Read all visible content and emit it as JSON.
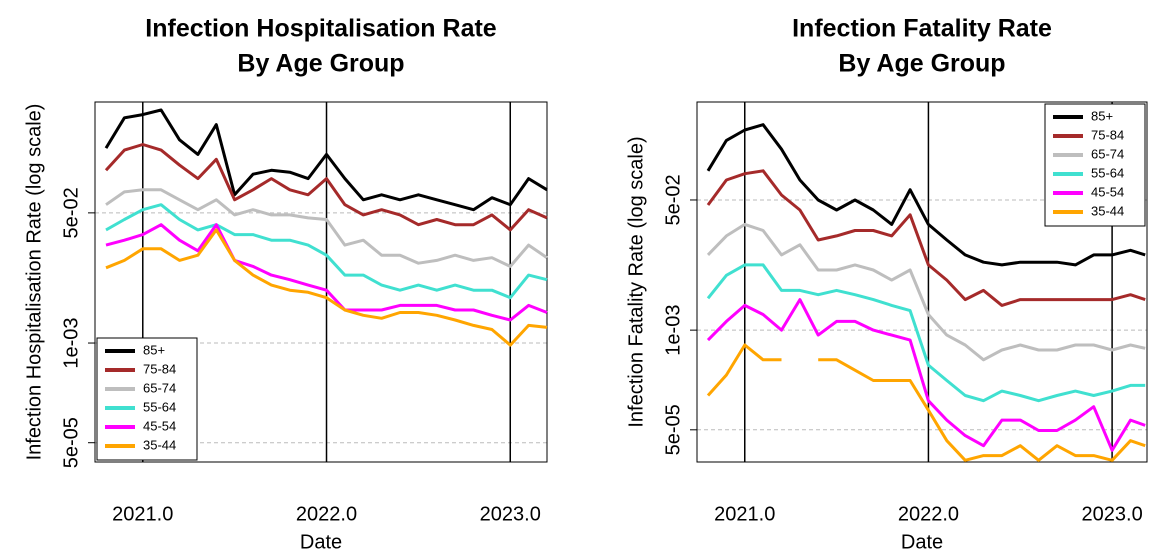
{
  "chart_data": [
    {
      "type": "line",
      "title": "Infection Hospitalisation Rate",
      "subtitle": "By Age Group",
      "x_label": "Date",
      "y_label": "Infection Hospitalisation Rate (log scale)",
      "log_y": true,
      "grid": true,
      "legend": "bottom-left",
      "xlim": [
        2020.74,
        2023.2
      ],
      "xticks": [
        {
          "value": 2021,
          "label": "2021.0"
        },
        {
          "value": 2022,
          "label": "2022.0"
        },
        {
          "value": 2023,
          "label": "2023.0"
        }
      ],
      "ylim": [
        2.8e-05,
        1.4
      ],
      "yticks": [
        {
          "value": 5e-05,
          "label": "5e-05"
        },
        {
          "value": 0.001,
          "label": "1e-03"
        },
        {
          "value": 0.05,
          "label": "5e-02"
        }
      ],
      "x": [
        2020.8,
        2020.9,
        2021.0,
        2021.1,
        2021.2,
        2021.3,
        2021.4,
        2021.5,
        2021.6,
        2021.7,
        2021.8,
        2021.9,
        2022.0,
        2022.1,
        2022.2,
        2022.3,
        2022.4,
        2022.5,
        2022.6,
        2022.7,
        2022.8,
        2022.9,
        2023.0,
        2023.1,
        2023.2
      ],
      "series": [
        {
          "name": "85+",
          "color": "#000000",
          "values": [
            0.35,
            0.87,
            0.96,
            1.1,
            0.45,
            0.29,
            0.71,
            0.086,
            0.16,
            0.18,
            0.17,
            0.14,
            0.29,
            0.14,
            0.074,
            0.086,
            0.074,
            0.086,
            0.074,
            0.064,
            0.055,
            0.079,
            0.064,
            0.14,
            0.1
          ]
        },
        {
          "name": "75-84",
          "color": "#a52a2a",
          "values": [
            0.18,
            0.33,
            0.39,
            0.33,
            0.21,
            0.14,
            0.25,
            0.074,
            0.1,
            0.14,
            0.1,
            0.086,
            0.14,
            0.064,
            0.047,
            0.055,
            0.047,
            0.035,
            0.041,
            0.035,
            0.035,
            0.047,
            0.03,
            0.055,
            0.043
          ]
        },
        {
          "name": "65-74",
          "color": "#bebebe",
          "values": [
            0.064,
            0.094,
            0.1,
            0.1,
            0.074,
            0.055,
            0.074,
            0.047,
            0.055,
            0.047,
            0.047,
            0.043,
            0.041,
            0.019,
            0.022,
            0.014,
            0.014,
            0.011,
            0.012,
            0.014,
            0.012,
            0.013,
            0.01,
            0.019,
            0.013
          ]
        },
        {
          "name": "55-64",
          "color": "#40e0d0",
          "values": [
            0.03,
            0.041,
            0.055,
            0.064,
            0.041,
            0.03,
            0.035,
            0.026,
            0.026,
            0.022,
            0.022,
            0.019,
            0.014,
            0.0077,
            0.0077,
            0.0057,
            0.0049,
            0.0057,
            0.0049,
            0.0057,
            0.0049,
            0.0049,
            0.0039,
            0.0077,
            0.0067
          ]
        },
        {
          "name": "45-54",
          "color": "#ff00ff",
          "values": [
            0.019,
            0.022,
            0.026,
            0.035,
            0.022,
            0.016,
            0.035,
            0.012,
            0.01,
            0.0077,
            0.0067,
            0.0057,
            0.0049,
            0.0027,
            0.0027,
            0.0027,
            0.0031,
            0.0031,
            0.0031,
            0.0027,
            0.0027,
            0.0023,
            0.002,
            0.0031,
            0.0025
          ]
        },
        {
          "name": "35-44",
          "color": "#ffa500",
          "values": [
            0.0096,
            0.012,
            0.017,
            0.017,
            0.012,
            0.014,
            0.03,
            0.012,
            0.0077,
            0.0057,
            0.0049,
            0.0046,
            0.0039,
            0.0027,
            0.0023,
            0.0021,
            0.0025,
            0.0025,
            0.0023,
            0.002,
            0.0017,
            0.0015,
            0.00094,
            0.0017,
            0.0016
          ]
        }
      ]
    },
    {
      "type": "line",
      "title": "Infection Fatality Rate",
      "subtitle": "By Age Group",
      "x_label": "Date",
      "y_label": "Infection Fatality Rate (log scale)",
      "log_y": true,
      "grid": true,
      "legend": "top-right",
      "xlim": [
        2020.74,
        2023.19
      ],
      "xticks": [
        {
          "value": 2021,
          "label": "2021.0"
        },
        {
          "value": 2022,
          "label": "2022.0"
        },
        {
          "value": 2023,
          "label": "2023.0"
        }
      ],
      "ylim": [
        1.9e-05,
        0.95
      ],
      "yticks": [
        {
          "value": 5e-05,
          "label": "5e-05"
        },
        {
          "value": 0.001,
          "label": "1e-03"
        },
        {
          "value": 0.05,
          "label": "5e-02"
        }
      ],
      "x": [
        2020.8,
        2020.9,
        2021.0,
        2021.1,
        2021.2,
        2021.3,
        2021.4,
        2021.5,
        2021.6,
        2021.7,
        2021.8,
        2021.9,
        2022.0,
        2022.1,
        2022.2,
        2022.3,
        2022.4,
        2022.5,
        2022.6,
        2022.7,
        2022.8,
        2022.9,
        2023.0,
        2023.1,
        2023.18
      ],
      "series": [
        {
          "name": "85+",
          "color": "#000000",
          "values": [
            0.12,
            0.3,
            0.41,
            0.48,
            0.23,
            0.091,
            0.05,
            0.037,
            0.05,
            0.037,
            0.024,
            0.068,
            0.024,
            0.015,
            0.0096,
            0.0077,
            0.0071,
            0.0077,
            0.0077,
            0.0077,
            0.0071,
            0.0096,
            0.0096,
            0.011,
            0.0096
          ]
        },
        {
          "name": "75-84",
          "color": "#a52a2a",
          "values": [
            0.043,
            0.091,
            0.11,
            0.12,
            0.058,
            0.037,
            0.015,
            0.017,
            0.02,
            0.02,
            0.017,
            0.032,
            0.0071,
            0.0045,
            0.0025,
            0.0033,
            0.0021,
            0.0025,
            0.0025,
            0.0025,
            0.0025,
            0.0025,
            0.0025,
            0.0029,
            0.0025
          ]
        },
        {
          "name": "65-74",
          "color": "#bebebe",
          "values": [
            0.0096,
            0.017,
            0.024,
            0.02,
            0.0096,
            0.013,
            0.0061,
            0.0061,
            0.0071,
            0.0061,
            0.0045,
            0.0061,
            0.0016,
            0.00086,
            0.00064,
            0.00041,
            0.00055,
            0.00064,
            0.00055,
            0.00055,
            0.00064,
            0.00064,
            0.00055,
            0.00064,
            0.00058
          ]
        },
        {
          "name": "55-64",
          "color": "#40e0d0",
          "values": [
            0.0026,
            0.0052,
            0.0071,
            0.0071,
            0.0033,
            0.0033,
            0.0029,
            0.0033,
            0.0029,
            0.0025,
            0.0021,
            0.0018,
            0.00035,
            0.00022,
            0.00014,
            0.00012,
            0.00016,
            0.00014,
            0.00012,
            0.00014,
            0.00016,
            0.00014,
            0.00016,
            0.00019,
            0.00019
          ]
        },
        {
          "name": "45-54",
          "color": "#ff00ff",
          "values": [
            0.00074,
            0.0013,
            0.0021,
            0.0016,
            0.001,
            0.0025,
            0.00086,
            0.0013,
            0.0013,
            0.001,
            0.00086,
            0.00074,
            0.00012,
            6.7e-05,
            4.2e-05,
            3.1e-05,
            6.7e-05,
            6.7e-05,
            4.9e-05,
            4.9e-05,
            6.7e-05,
            0.0001,
            2.7e-05,
            6.7e-05,
            5.7e-05
          ]
        },
        {
          "name": "35-44",
          "color": "#ffa500",
          "values": [
            0.00014,
            0.00026,
            0.00064,
            0.00041,
            0.00041,
            null,
            0.00041,
            0.00041,
            0.0003,
            0.00022,
            0.00022,
            0.00022,
            9e-05,
            3.6e-05,
            2e-05,
            2.3e-05,
            2.3e-05,
            3.1e-05,
            2e-05,
            3.1e-05,
            2.3e-05,
            2.3e-05,
            2e-05,
            3.6e-05,
            3.1e-05
          ]
        }
      ]
    }
  ]
}
